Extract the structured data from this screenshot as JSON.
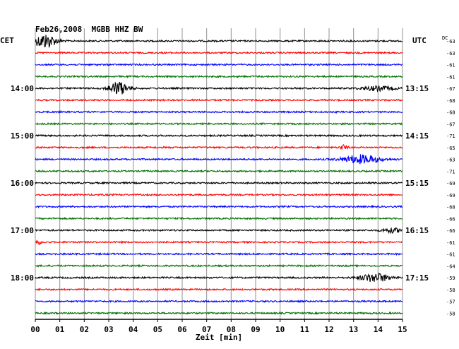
{
  "chart_data": {
    "type": "line",
    "title": "Feb26,2008  MGBB HHZ BW",
    "xlabel": "Zeit [min]",
    "left_axis_label": "CET",
    "right_axis_label": "UTC",
    "dc_label": "DC",
    "x_ticks": [
      "00",
      "01",
      "02",
      "03",
      "04",
      "05",
      "06",
      "07",
      "08",
      "09",
      "10",
      "11",
      "12",
      "13",
      "14",
      "15"
    ],
    "xlim": [
      0,
      15
    ],
    "grid": true,
    "row_colors": [
      "#000000",
      "#ff0000",
      "#0000ff",
      "#007000"
    ],
    "rows_per_hour": 4,
    "cet_hour_labels": [
      {
        "row": 4,
        "label": "14:00"
      },
      {
        "row": 8,
        "label": "15:00"
      },
      {
        "row": 12,
        "label": "16:00"
      },
      {
        "row": 16,
        "label": "17:00"
      },
      {
        "row": 20,
        "label": "18:00"
      }
    ],
    "utc_hour_labels": [
      {
        "row": 4,
        "label": "13:15"
      },
      {
        "row": 8,
        "label": "14:15"
      },
      {
        "row": 12,
        "label": "15:15"
      },
      {
        "row": 16,
        "label": "16:15"
      },
      {
        "row": 20,
        "label": "17:15"
      }
    ],
    "dc_offsets": [
      "-63",
      "-63",
      "-61",
      "-61",
      "-67",
      "-68",
      "-68",
      "-67",
      "-71",
      "-65",
      "-63",
      "-71",
      "-69",
      "-69",
      "-68",
      "-66",
      "-66",
      "-61",
      "-61",
      "-64",
      "-59",
      "-58",
      "-57",
      "-58"
    ],
    "events": [
      {
        "row": 0,
        "minute": 0.4,
        "amplitude": 10,
        "duration": 0.9
      },
      {
        "row": 4,
        "minute": 3.4,
        "amplitude": 9,
        "duration": 0.8
      },
      {
        "row": 4,
        "minute": 14.0,
        "amplitude": 3,
        "duration": 1.3
      },
      {
        "row": 9,
        "minute": 12.6,
        "amplitude": 3,
        "duration": 0.3
      },
      {
        "row": 10,
        "minute": 13.3,
        "amplitude": 6,
        "duration": 1.5
      },
      {
        "row": 16,
        "minute": 14.6,
        "amplitude": 3,
        "duration": 0.8
      },
      {
        "row": 17,
        "minute": 0.1,
        "amplitude": 3,
        "duration": 0.3
      },
      {
        "row": 20,
        "minute": 13.9,
        "amplitude": 6,
        "duration": 1.2
      }
    ]
  }
}
